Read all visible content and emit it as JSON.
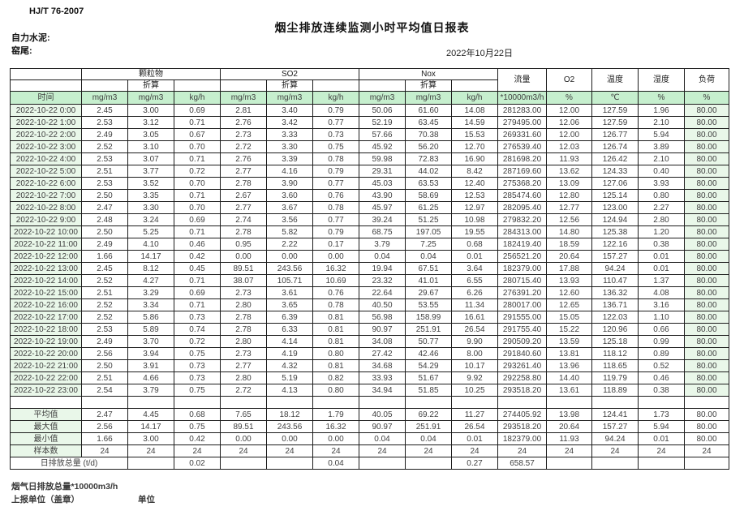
{
  "page": {
    "standard": "HJ/T  76-2007",
    "title": "烟尘排放连续监测小时平均值日报表",
    "company": "自力水泥:",
    "location": "窑尾:",
    "date": "2022年10月22日"
  },
  "footer": {
    "flue_gas_total": "烟气日排放总量*10000m3/h",
    "reporting_unit": "上报单位（盖章）",
    "unit": "单位"
  },
  "colors": {
    "unit_row_bg": "#c6efce",
    "time_col_bg": "#e9f7e9",
    "border": "#1c1c1c"
  },
  "table": {
    "time_header": "时间",
    "converted_label": "折算",
    "groups": [
      {
        "label": "颗粒物"
      },
      {
        "label": "SO2"
      },
      {
        "label": "Nox"
      }
    ],
    "single_cols": [
      "流量",
      "O2",
      "温度",
      "湿度",
      "负荷"
    ],
    "units": [
      "mg/m3",
      "mg/m3",
      "kg/h",
      "mg/m3",
      "mg/m3",
      "kg/h",
      "mg/m3",
      "mg/m3",
      "kg/h",
      "*10000m3/h",
      "%",
      "℃",
      "%",
      "%"
    ],
    "rows": [
      {
        "time": "2022-10-22 0:00",
        "values": [
          "2.45",
          "3.00",
          "0.69",
          "2.81",
          "3.40",
          "0.79",
          "50.06",
          "61.60",
          "14.08",
          "281283.00",
          "12.00",
          "127.59",
          "1.96",
          "80.00"
        ]
      },
      {
        "time": "2022-10-22 1:00",
        "values": [
          "2.53",
          "3.12",
          "0.71",
          "2.76",
          "3.42",
          "0.77",
          "52.19",
          "63.45",
          "14.59",
          "279495.00",
          "12.06",
          "127.59",
          "2.10",
          "80.00"
        ]
      },
      {
        "time": "2022-10-22 2:00",
        "values": [
          "2.49",
          "3.05",
          "0.67",
          "2.73",
          "3.33",
          "0.73",
          "57.66",
          "70.38",
          "15.53",
          "269331.60",
          "12.00",
          "126.77",
          "5.94",
          "80.00"
        ]
      },
      {
        "time": "2022-10-22 3:00",
        "values": [
          "2.52",
          "3.10",
          "0.70",
          "2.72",
          "3.30",
          "0.75",
          "45.92",
          "56.20",
          "12.70",
          "276539.40",
          "12.03",
          "126.74",
          "3.89",
          "80.00"
        ]
      },
      {
        "time": "2022-10-22 4:00",
        "values": [
          "2.53",
          "3.07",
          "0.71",
          "2.76",
          "3.39",
          "0.78",
          "59.98",
          "72.83",
          "16.90",
          "281698.20",
          "11.93",
          "126.42",
          "2.10",
          "80.00"
        ]
      },
      {
        "time": "2022-10-22 5:00",
        "values": [
          "2.51",
          "3.77",
          "0.72",
          "2.77",
          "4.16",
          "0.79",
          "29.31",
          "44.02",
          "8.42",
          "287169.60",
          "13.62",
          "124.33",
          "0.40",
          "80.00"
        ]
      },
      {
        "time": "2022-10-22 6:00",
        "values": [
          "2.53",
          "3.52",
          "0.70",
          "2.78",
          "3.90",
          "0.77",
          "45.03",
          "63.53",
          "12.40",
          "275368.20",
          "13.09",
          "127.06",
          "3.93",
          "80.00"
        ]
      },
      {
        "time": "2022-10-22 7:00",
        "values": [
          "2.50",
          "3.35",
          "0.71",
          "2.67",
          "3.60",
          "0.76",
          "43.90",
          "58.69",
          "12.53",
          "285474.60",
          "12.80",
          "125.14",
          "0.80",
          "80.00"
        ]
      },
      {
        "time": "2022-10-22 8:00",
        "values": [
          "2.47",
          "3.30",
          "0.70",
          "2.77",
          "3.67",
          "0.78",
          "45.97",
          "61.25",
          "12.97",
          "282095.40",
          "12.77",
          "123.00",
          "2.27",
          "80.00"
        ]
      },
      {
        "time": "2022-10-22 9:00",
        "values": [
          "2.48",
          "3.24",
          "0.69",
          "2.74",
          "3.56",
          "0.77",
          "39.24",
          "51.25",
          "10.98",
          "279832.20",
          "12.56",
          "124.94",
          "2.80",
          "80.00"
        ]
      },
      {
        "time": "2022-10-22 10:00",
        "values": [
          "2.50",
          "5.25",
          "0.71",
          "2.78",
          "5.82",
          "0.79",
          "68.75",
          "197.05",
          "19.55",
          "284313.00",
          "14.80",
          "125.38",
          "1.20",
          "80.00"
        ]
      },
      {
        "time": "2022-10-22 11:00",
        "values": [
          "2.49",
          "4.10",
          "0.46",
          "0.95",
          "2.22",
          "0.17",
          "3.79",
          "7.25",
          "0.68",
          "182419.40",
          "18.59",
          "122.16",
          "0.38",
          "80.00"
        ]
      },
      {
        "time": "2022-10-22 12:00",
        "values": [
          "1.66",
          "14.17",
          "0.42",
          "0.00",
          "0.00",
          "0.00",
          "0.04",
          "0.04",
          "0.01",
          "256521.20",
          "20.64",
          "157.27",
          "0.01",
          "80.00"
        ]
      },
      {
        "time": "2022-10-22 13:00",
        "values": [
          "2.45",
          "8.12",
          "0.45",
          "89.51",
          "243.56",
          "16.32",
          "19.94",
          "67.51",
          "3.64",
          "182379.00",
          "17.88",
          "94.24",
          "0.01",
          "80.00"
        ]
      },
      {
        "time": "2022-10-22 14:00",
        "values": [
          "2.52",
          "4.27",
          "0.71",
          "38.07",
          "105.71",
          "10.69",
          "23.32",
          "41.01",
          "6.55",
          "280715.40",
          "13.93",
          "110.47",
          "1.37",
          "80.00"
        ]
      },
      {
        "time": "2022-10-22 15:00",
        "values": [
          "2.51",
          "3.29",
          "0.69",
          "2.73",
          "3.61",
          "0.76",
          "22.64",
          "29.67",
          "6.26",
          "276391.20",
          "12.60",
          "136.32",
          "4.08",
          "80.00"
        ]
      },
      {
        "time": "2022-10-22 16:00",
        "values": [
          "2.52",
          "3.34",
          "0.71",
          "2.80",
          "3.65",
          "0.78",
          "40.50",
          "53.55",
          "11.34",
          "280017.00",
          "12.65",
          "136.71",
          "3.16",
          "80.00"
        ]
      },
      {
        "time": "2022-10-22 17:00",
        "values": [
          "2.52",
          "5.86",
          "0.73",
          "2.78",
          "6.39",
          "0.81",
          "56.98",
          "158.99",
          "16.61",
          "291555.00",
          "15.05",
          "122.03",
          "1.10",
          "80.00"
        ]
      },
      {
        "time": "2022-10-22 18:00",
        "values": [
          "2.53",
          "5.89",
          "0.74",
          "2.78",
          "6.33",
          "0.81",
          "90.97",
          "251.91",
          "26.54",
          "291755.40",
          "15.22",
          "120.96",
          "0.66",
          "80.00"
        ]
      },
      {
        "time": "2022-10-22 19:00",
        "values": [
          "2.49",
          "3.70",
          "0.72",
          "2.80",
          "4.14",
          "0.81",
          "34.08",
          "50.77",
          "9.90",
          "290509.20",
          "13.59",
          "125.18",
          "0.99",
          "80.00"
        ]
      },
      {
        "time": "2022-10-22 20:00",
        "values": [
          "2.56",
          "3.94",
          "0.75",
          "2.73",
          "4.19",
          "0.80",
          "27.42",
          "42.46",
          "8.00",
          "291840.60",
          "13.81",
          "118.12",
          "0.89",
          "80.00"
        ]
      },
      {
        "time": "2022-10-22 21:00",
        "values": [
          "2.50",
          "3.91",
          "0.73",
          "2.77",
          "4.32",
          "0.81",
          "34.68",
          "54.29",
          "10.17",
          "293261.40",
          "13.96",
          "118.65",
          "0.52",
          "80.00"
        ]
      },
      {
        "time": "2022-10-22 22:00",
        "values": [
          "2.51",
          "4.66",
          "0.73",
          "2.80",
          "5.19",
          "0.82",
          "33.93",
          "51.67",
          "9.92",
          "292258.80",
          "14.40",
          "119.79",
          "0.46",
          "80.00"
        ]
      },
      {
        "time": "2022-10-22 23:00",
        "values": [
          "2.54",
          "3.79",
          "0.75",
          "2.72",
          "4.13",
          "0.80",
          "34.94",
          "51.85",
          "10.25",
          "293518.20",
          "13.61",
          "118.89",
          "0.38",
          "80.00"
        ]
      }
    ],
    "summary": [
      {
        "label": "平均值",
        "values": [
          "2.47",
          "4.45",
          "0.68",
          "7.65",
          "18.12",
          "1.79",
          "40.05",
          "69.22",
          "11.27",
          "274405.92",
          "13.98",
          "124.41",
          "1.73",
          "80.00"
        ]
      },
      {
        "label": "最大值",
        "values": [
          "2.56",
          "14.17",
          "0.75",
          "89.51",
          "243.56",
          "16.32",
          "90.97",
          "251.91",
          "26.54",
          "293518.20",
          "20.64",
          "157.27",
          "5.94",
          "80.00"
        ]
      },
      {
        "label": "最小值",
        "values": [
          "1.66",
          "3.00",
          "0.42",
          "0.00",
          "0.00",
          "0.00",
          "0.04",
          "0.04",
          "0.01",
          "182379.00",
          "11.93",
          "94.24",
          "0.01",
          "80.00"
        ]
      },
      {
        "label": "样本数",
        "values": [
          "24",
          "24",
          "24",
          "24",
          "24",
          "24",
          "24",
          "24",
          "24",
          "24",
          "24",
          "24",
          "24",
          "24"
        ]
      }
    ],
    "daily_total": {
      "label": "日排放总量 (t/d)",
      "values": [
        "",
        "0.02",
        "",
        "",
        "0.04",
        "",
        "",
        "0.27",
        "658.57",
        "",
        "",
        "",
        ""
      ]
    }
  }
}
